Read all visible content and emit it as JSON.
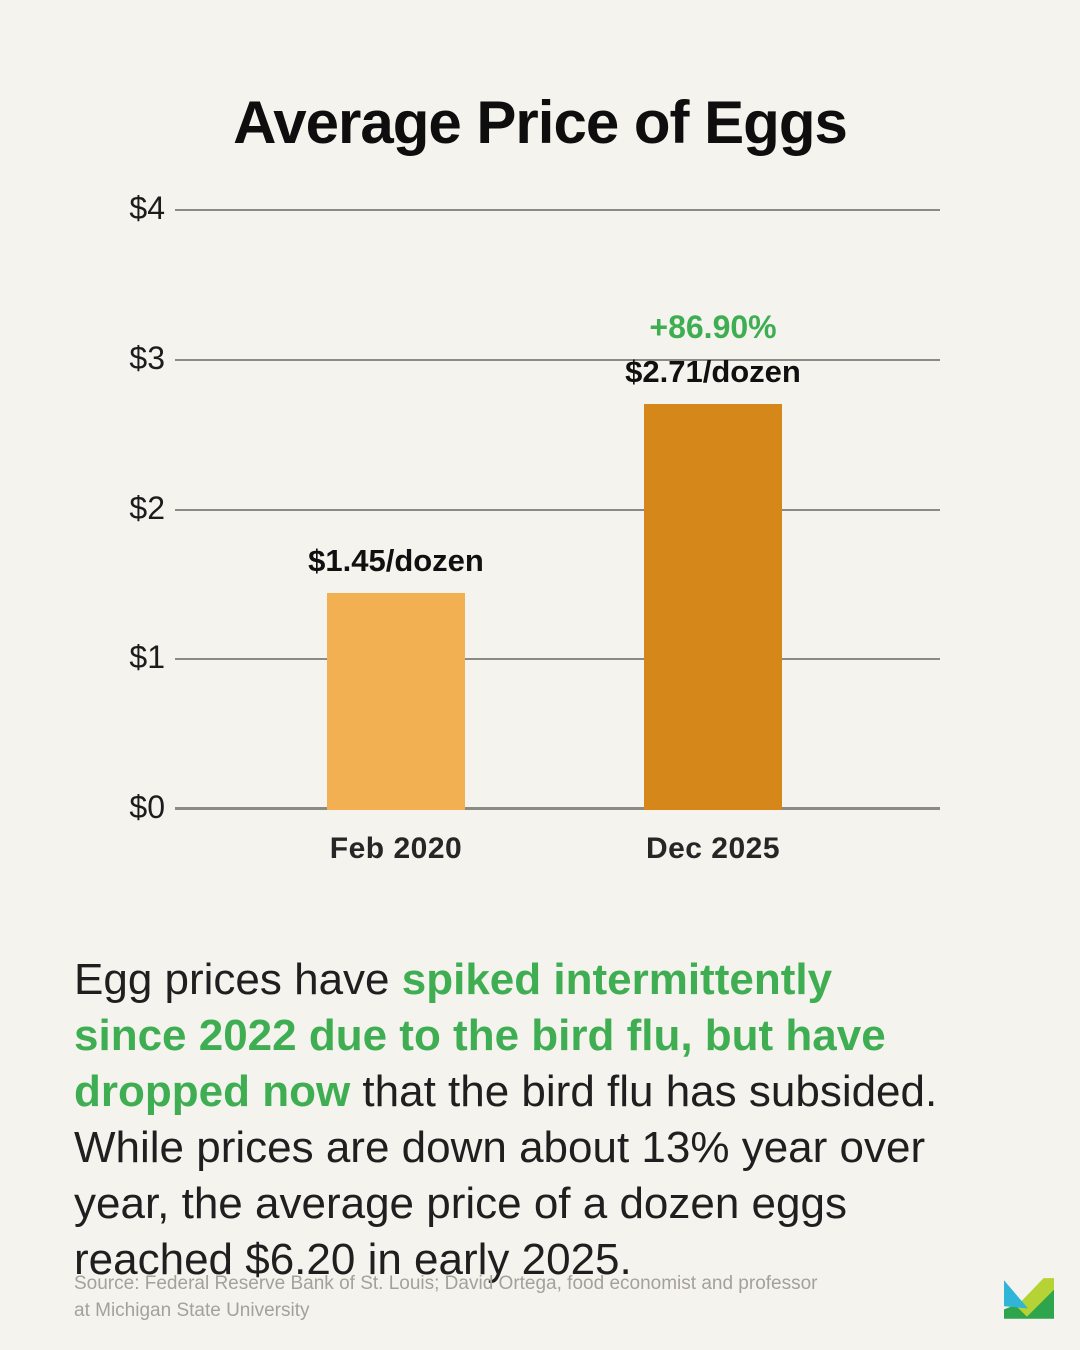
{
  "title": "Average Price of Eggs",
  "chart_data": {
    "type": "bar",
    "title": "Average Price of Eggs",
    "categories": [
      "Feb 2020",
      "Dec 2025"
    ],
    "values": [
      1.45,
      2.71
    ],
    "value_labels": [
      "$1.45/dozen",
      "$2.71/dozen"
    ],
    "pct_change_label": "+86.90%",
    "pct_change_color": "#3fae52",
    "yticks": [
      {
        "label": "$0",
        "value": 0
      },
      {
        "label": "$1",
        "value": 1
      },
      {
        "label": "$2",
        "value": 2
      },
      {
        "label": "$3",
        "value": 3
      },
      {
        "label": "$4",
        "value": 4
      }
    ],
    "ylim": [
      0,
      4
    ],
    "grid": true,
    "legend": "none",
    "bar_colors": [
      "#f2b052",
      "#d5871a"
    ]
  },
  "body": {
    "highlight_color": "#3fae52",
    "segments": [
      {
        "text": "Egg prices have ",
        "style": "normal"
      },
      {
        "text": "spiked intermittently\nsince 2022 due to the bird flu, but have\ndropped now",
        "style": "highlight"
      },
      {
        "text": " that the bird flu has subsided.\nWhile prices are down about 13% year over\nyear, the average price of a dozen eggs\nreached $6.20 in early 2025.",
        "style": "normal"
      }
    ]
  },
  "source": {
    "text": "Source: Federal Reserve Bank of St. Louis; David Ortega, food economist and professor\nat Michigan State University"
  },
  "logo": {
    "name": "money-logo",
    "colors": {
      "blue": "#2fb5d8",
      "lime": "#b6d335",
      "green": "#2ea54d"
    }
  }
}
